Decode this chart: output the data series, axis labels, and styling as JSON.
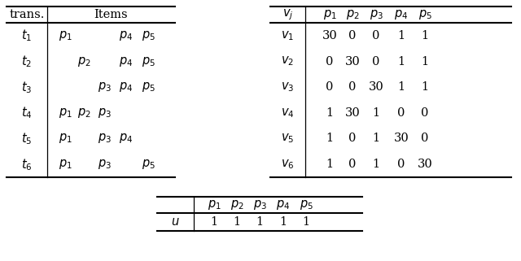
{
  "table1": {
    "trans_rows": [
      "t_1",
      "t_2",
      "t_3",
      "t_4",
      "t_5",
      "t_6"
    ],
    "items_data": [
      {
        "0": "p_1",
        "3": "p_4",
        "4": "p_5"
      },
      {
        "1": "p_2",
        "3": "p_4",
        "4": "p_5"
      },
      {
        "2": "p_3",
        "3": "p_4",
        "4": "p_5"
      },
      {
        "0": "p_1",
        "1": "p_2",
        "2": "p_3"
      },
      {
        "0": "p_1",
        "2": "p_3",
        "3": "p_4"
      },
      {
        "0": "p_1",
        "2": "p_3",
        "4": "p_5"
      }
    ]
  },
  "table2": {
    "header": [
      "v_j",
      "p_1",
      "p_2",
      "p_3",
      "p_4",
      "p_5"
    ],
    "rows": [
      [
        "v_1",
        "30",
        "0",
        "0",
        "1",
        "1"
      ],
      [
        "v_2",
        "0",
        "30",
        "0",
        "1",
        "1"
      ],
      [
        "v_3",
        "0",
        "0",
        "30",
        "1",
        "1"
      ],
      [
        "v_4",
        "1",
        "30",
        "1",
        "0",
        "0"
      ],
      [
        "v_5",
        "1",
        "0",
        "1",
        "30",
        "0"
      ],
      [
        "v_6",
        "1",
        "0",
        "1",
        "0",
        "30"
      ]
    ]
  },
  "table3": {
    "header": [
      "",
      "p_1",
      "p_2",
      "p_3",
      "p_4",
      "p_5"
    ],
    "row": [
      "u",
      "1",
      "1",
      "1",
      "1",
      "1"
    ]
  },
  "bg_color": "#ffffff"
}
